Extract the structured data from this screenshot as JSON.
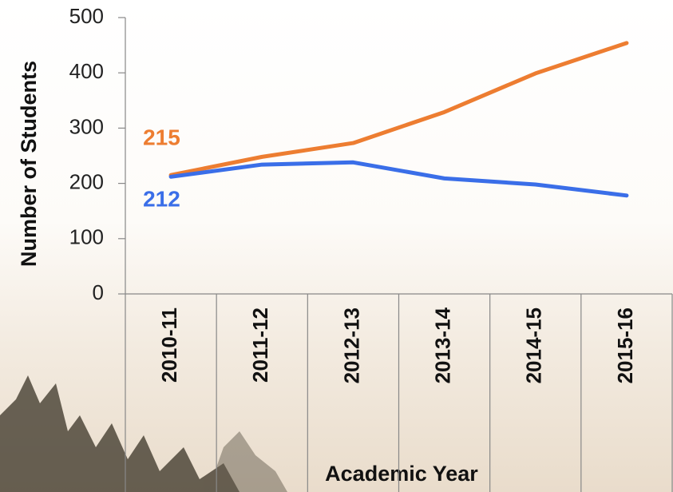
{
  "chart_data": {
    "type": "line",
    "y_label": "Number of Students",
    "x_label": "Academic Year",
    "categories": [
      "2010-11",
      "2011-12",
      "2012-13",
      "2013-14",
      "2014-15",
      "2015-16"
    ],
    "series": [
      {
        "name": "Orange",
        "color": "#ed7d31",
        "values": [
          215,
          248,
          273,
          329,
          399,
          454
        ]
      },
      {
        "name": "Blue",
        "color": "#3a6ee8",
        "values": [
          212,
          234,
          238,
          209,
          198,
          178
        ]
      }
    ],
    "ylim": [
      0,
      500
    ],
    "yticks": [
      0,
      100,
      200,
      300,
      400,
      500
    ]
  }
}
